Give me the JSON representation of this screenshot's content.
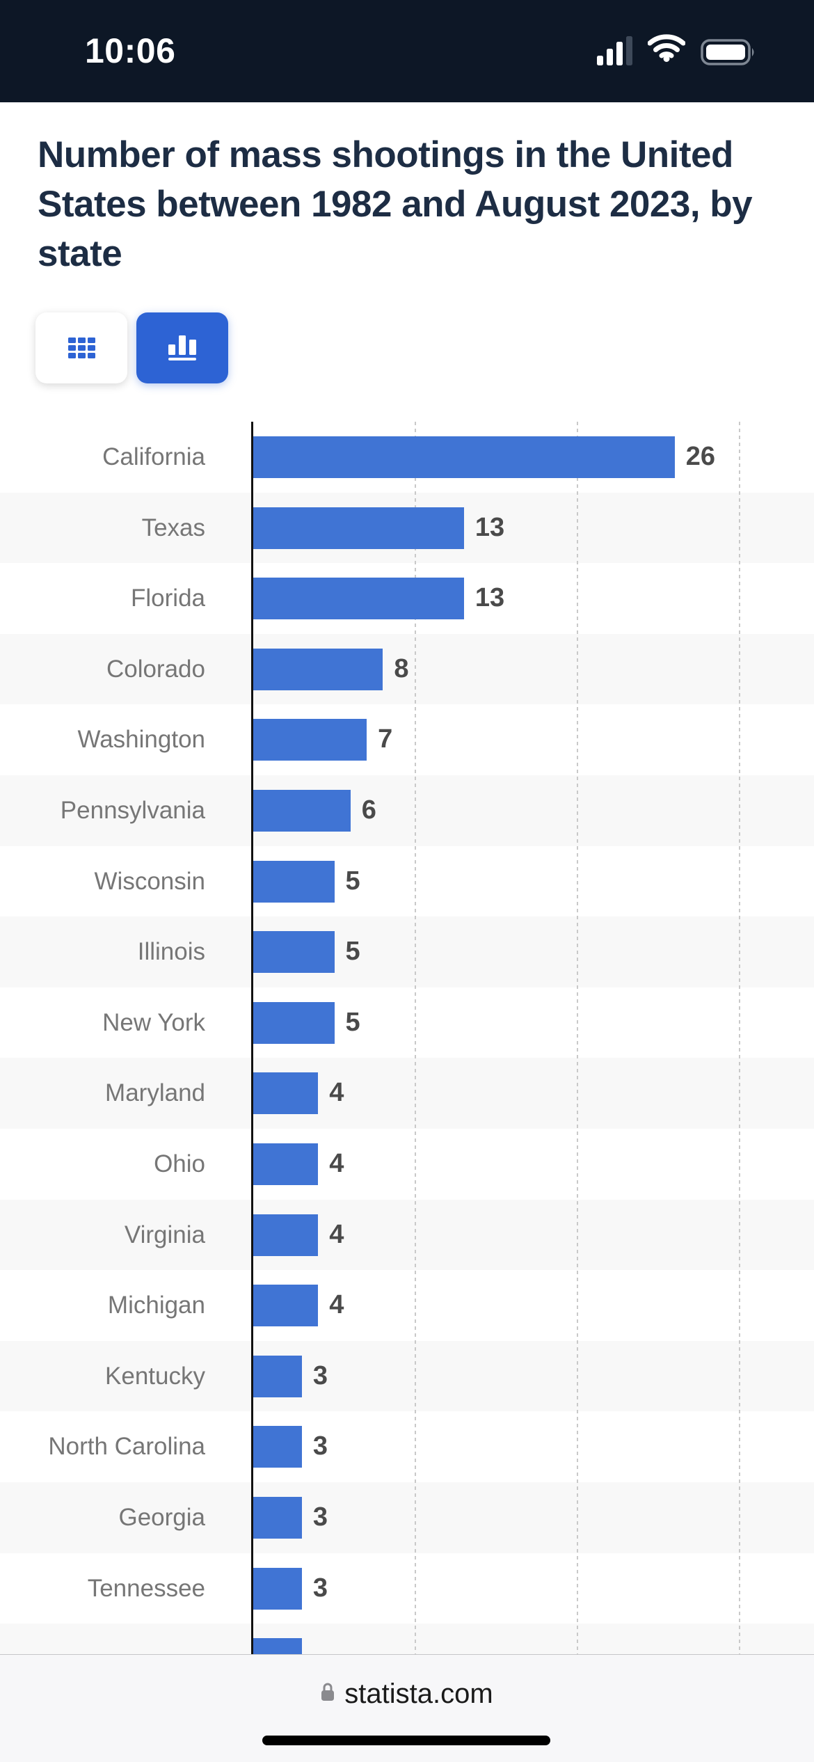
{
  "status_bar": {
    "time": "10:06",
    "cellular_icon": "cellular-signal-3-of-4-bars",
    "wifi_icon": "wifi-full",
    "battery_icon": "battery-full"
  },
  "page": {
    "title": "Number of mass shootings in the United States between 1982 and August 2023, by state",
    "title_lines": [
      "Number of mass shootings in the United",
      "States between 1982 and August 2023, by",
      "state"
    ]
  },
  "view_toggle": {
    "table_button_icon": "table-grid-icon",
    "chart_button_icon": "bar-chart-icon",
    "active_view": "chart"
  },
  "chart_data": {
    "type": "bar",
    "orientation": "horizontal",
    "title": "Number of mass shootings in the United States between 1982 and August 2023, by state",
    "categories": [
      "California",
      "Texas",
      "Florida",
      "Colorado",
      "Washington",
      "Pennsylvania",
      "Wisconsin",
      "Illinois",
      "New York",
      "Maryland",
      "Ohio",
      "Virginia",
      "Michigan",
      "Kentucky",
      "North Carolina",
      "Georgia",
      "Tennessee"
    ],
    "values": [
      26,
      13,
      13,
      8,
      7,
      6,
      5,
      5,
      5,
      4,
      4,
      4,
      4,
      3,
      3,
      3,
      3
    ],
    "partial_next_row_value": 3,
    "xlim": [
      0,
      34.6
    ],
    "gridline_values": [
      10,
      20,
      30
    ],
    "grid_style": "dashed-vertical",
    "legend": "none",
    "bar_color": "#4074d4",
    "category_label_color": "#767676",
    "value_label_color": "#4a4a4a",
    "stripe_color": "#f8f8f8",
    "axis_color": "#111111"
  },
  "browser_bar": {
    "url": "statista.com",
    "lock_icon": "lock"
  },
  "colors": {
    "status_bar_bg": "#0d1726",
    "title_text": "#1d2d44",
    "accent_blue": "#2d63d4",
    "browser_bar_bg": "#f7f7f9"
  }
}
